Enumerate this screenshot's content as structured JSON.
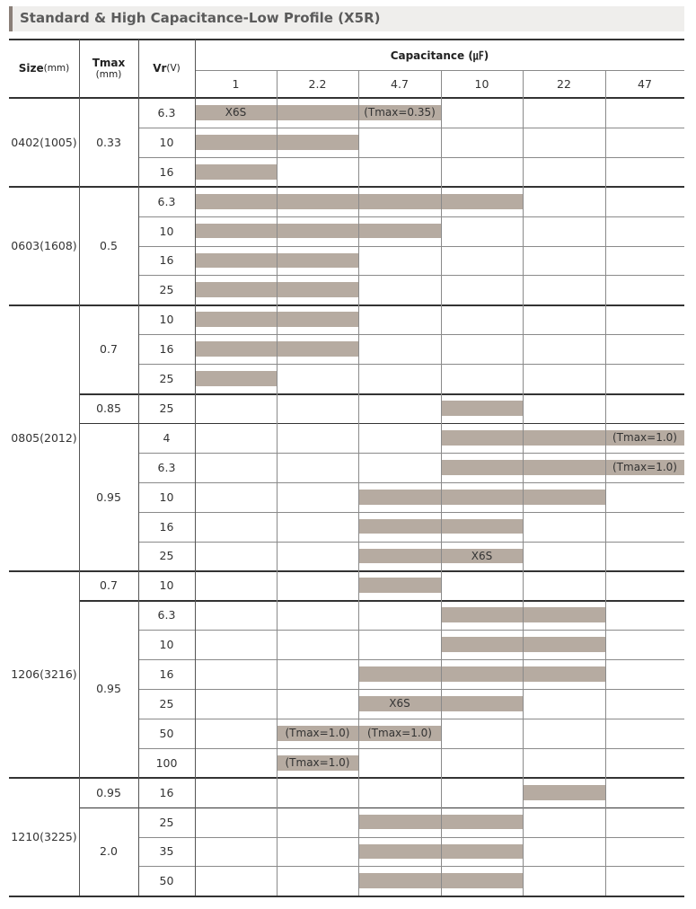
{
  "title": "Standard & High Capacitance-Low Profile (X5R)",
  "header": {
    "size": "Size",
    "size_unit": "(mm)",
    "tmax": "Tmax",
    "tmax_unit": "(mm)",
    "vr": "Vr",
    "vr_unit": "(V)",
    "capacitance": "Capacitance (㎌)",
    "cap_values": [
      "1",
      "2.2",
      "4.7",
      "10",
      "22",
      "47"
    ]
  },
  "groups": [
    {
      "size": "0402(1005)",
      "subgroups": [
        {
          "tmax": "0.33",
          "rows": [
            {
              "vr": "6.3",
              "bars": [
                {
                  "from": 0,
                  "to": 3,
                  "labels": [
                    {
                      "col": 0,
                      "text": "X6S"
                    },
                    {
                      "col": 2,
                      "text": "(Tmax=0.35)"
                    }
                  ]
                }
              ]
            },
            {
              "vr": "10",
              "bars": [
                {
                  "from": 0,
                  "to": 2,
                  "labels": []
                }
              ]
            },
            {
              "vr": "16",
              "bars": [
                {
                  "from": 0,
                  "to": 1,
                  "labels": []
                }
              ]
            }
          ]
        }
      ]
    },
    {
      "size": "0603(1608)",
      "subgroups": [
        {
          "tmax": "0.5",
          "rows": [
            {
              "vr": "6.3",
              "bars": [
                {
                  "from": 0,
                  "to": 4,
                  "labels": []
                }
              ]
            },
            {
              "vr": "10",
              "bars": [
                {
                  "from": 0,
                  "to": 3,
                  "labels": []
                }
              ]
            },
            {
              "vr": "16",
              "bars": [
                {
                  "from": 0,
                  "to": 2,
                  "labels": []
                }
              ]
            },
            {
              "vr": "25",
              "bars": [
                {
                  "from": 0,
                  "to": 2,
                  "labels": []
                }
              ]
            }
          ]
        }
      ]
    },
    {
      "size": "0805(2012)",
      "subgroups": [
        {
          "tmax": "0.7",
          "rows": [
            {
              "vr": "10",
              "bars": [
                {
                  "from": 0,
                  "to": 2,
                  "labels": []
                }
              ]
            },
            {
              "vr": "16",
              "bars": [
                {
                  "from": 0,
                  "to": 2,
                  "labels": []
                }
              ]
            },
            {
              "vr": "25",
              "bars": [
                {
                  "from": 0,
                  "to": 1,
                  "labels": []
                }
              ]
            }
          ]
        },
        {
          "tmax": "0.85",
          "rows": [
            {
              "vr": "25",
              "bars": [
                {
                  "from": 3,
                  "to": 4,
                  "labels": []
                }
              ]
            }
          ]
        },
        {
          "tmax": "0.95",
          "rows": [
            {
              "vr": "4",
              "bars": [
                {
                  "from": 3,
                  "to": 6,
                  "labels": [
                    {
                      "col": 5,
                      "text": "(Tmax=1.0)"
                    }
                  ]
                }
              ]
            },
            {
              "vr": "6.3",
              "bars": [
                {
                  "from": 3,
                  "to": 6,
                  "labels": [
                    {
                      "col": 5,
                      "text": "(Tmax=1.0)"
                    }
                  ]
                }
              ]
            },
            {
              "vr": "10",
              "bars": [
                {
                  "from": 2,
                  "to": 5,
                  "labels": []
                }
              ]
            },
            {
              "vr": "16",
              "bars": [
                {
                  "from": 2,
                  "to": 4,
                  "labels": []
                }
              ]
            },
            {
              "vr": "25",
              "bars": [
                {
                  "from": 2,
                  "to": 4,
                  "labels": [
                    {
                      "col": 3,
                      "text": "X6S"
                    }
                  ]
                }
              ]
            }
          ]
        }
      ]
    },
    {
      "size": "1206(3216)",
      "subgroups": [
        {
          "tmax": "0.7",
          "rows": [
            {
              "vr": "10",
              "bars": [
                {
                  "from": 2,
                  "to": 3,
                  "labels": []
                }
              ]
            }
          ]
        },
        {
          "tmax": "0.95",
          "rows": [
            {
              "vr": "6.3",
              "bars": [
                {
                  "from": 3,
                  "to": 5,
                  "labels": []
                }
              ]
            },
            {
              "vr": "10",
              "bars": [
                {
                  "from": 3,
                  "to": 5,
                  "labels": []
                }
              ]
            },
            {
              "vr": "16",
              "bars": [
                {
                  "from": 2,
                  "to": 5,
                  "labels": []
                }
              ]
            },
            {
              "vr": "25",
              "bars": [
                {
                  "from": 2,
                  "to": 4,
                  "labels": [
                    {
                      "col": 2,
                      "text": "X6S"
                    }
                  ]
                }
              ]
            },
            {
              "vr": "50",
              "bars": [
                {
                  "from": 1,
                  "to": 2,
                  "labels": [
                    {
                      "col": 1,
                      "text": "(Tmax=1.0)"
                    }
                  ]
                },
                {
                  "from": 2,
                  "to": 3,
                  "labels": [
                    {
                      "col": 2,
                      "text": "(Tmax=1.0)"
                    }
                  ]
                }
              ]
            },
            {
              "vr": "100",
              "bars": [
                {
                  "from": 1,
                  "to": 2,
                  "labels": [
                    {
                      "col": 1,
                      "text": "(Tmax=1.0)"
                    }
                  ]
                }
              ]
            }
          ]
        }
      ]
    },
    {
      "size": "1210(3225)",
      "subgroups": [
        {
          "tmax": "0.95",
          "rows": [
            {
              "vr": "16",
              "bars": [
                {
                  "from": 4,
                  "to": 5,
                  "labels": []
                }
              ]
            }
          ]
        },
        {
          "tmax": "2.0",
          "rows": [
            {
              "vr": "25",
              "bars": [
                {
                  "from": 2,
                  "to": 4,
                  "labels": []
                }
              ]
            },
            {
              "vr": "35",
              "bars": [
                {
                  "from": 2,
                  "to": 4,
                  "labels": []
                }
              ]
            },
            {
              "vr": "50",
              "bars": [
                {
                  "from": 2,
                  "to": 4,
                  "labels": []
                }
              ]
            }
          ]
        }
      ]
    }
  ],
  "colors": {
    "bar": "#b6aba1",
    "title_bg": "#efeeec",
    "title_accent": "#8a7f78"
  }
}
